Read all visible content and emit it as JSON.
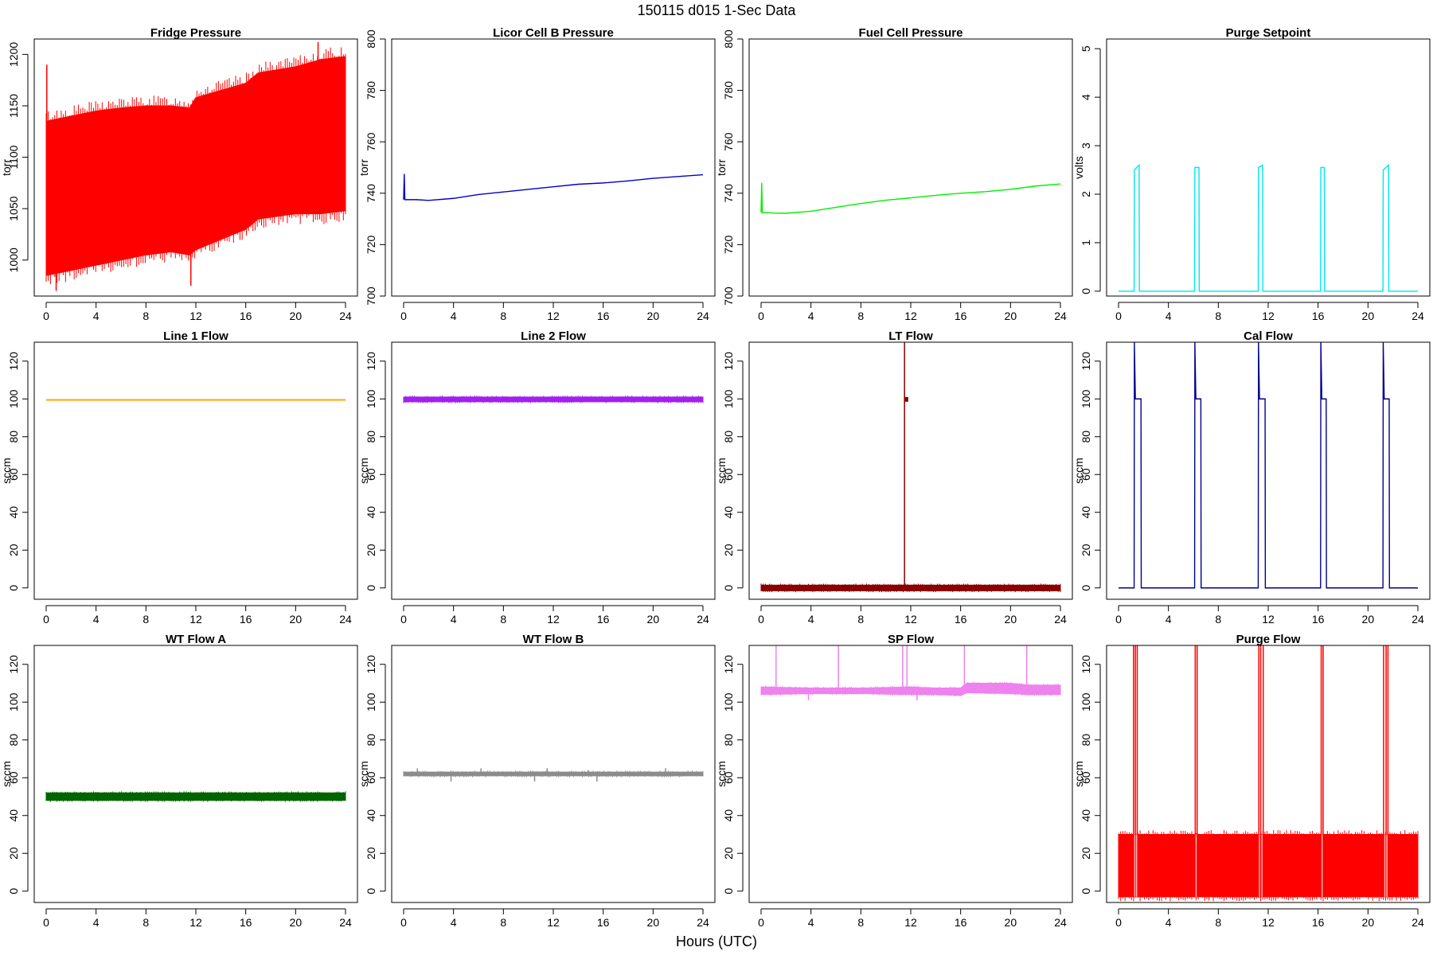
{
  "page": {
    "title": "150115    d015    1-Sec Data",
    "xlabel": "Hours (UTC)"
  },
  "chart_data": [
    {
      "type": "line",
      "title": "Fridge Pressure",
      "ylabel": "torr",
      "color": "#ff0000",
      "xlim": [
        0,
        24
      ],
      "ylim": [
        965,
        1215
      ],
      "xticks": [
        0,
        4,
        8,
        12,
        16,
        20,
        24
      ],
      "yticks": [
        1000,
        1050,
        1100,
        1150,
        1200
      ],
      "style": "band",
      "band": {
        "x": [
          0,
          2,
          4,
          6,
          8,
          10,
          11.5,
          12,
          14,
          16,
          17,
          20,
          22,
          24
        ],
        "low": [
          985,
          990,
          995,
          1000,
          1005,
          1008,
          1005,
          1010,
          1020,
          1030,
          1040,
          1045,
          1045,
          1048
        ],
        "high": [
          1135,
          1140,
          1145,
          1148,
          1150,
          1150,
          1148,
          1158,
          1165,
          1172,
          1182,
          1188,
          1195,
          1198
        ]
      },
      "spikes": [
        {
          "x": 0.05,
          "y": 1190
        },
        {
          "x": 0.8,
          "y": 970
        },
        {
          "x": 11.6,
          "y": 975
        },
        {
          "x": 21.8,
          "y": 1212
        }
      ]
    },
    {
      "type": "line",
      "title": "Licor Cell B Pressure",
      "ylabel": "torr",
      "color": "#0000cd",
      "xlim": [
        0,
        24
      ],
      "ylim": [
        700,
        800
      ],
      "xticks": [
        0,
        4,
        8,
        12,
        16,
        20,
        24
      ],
      "yticks": [
        700,
        720,
        740,
        760,
        780,
        800
      ],
      "style": "line",
      "x": [
        0,
        0.05,
        0.1,
        1,
        2,
        4,
        6,
        8,
        10,
        12,
        14,
        16,
        18,
        20,
        22,
        24
      ],
      "y": [
        737.5,
        747.5,
        737.5,
        737.5,
        737.2,
        738,
        739.5,
        740.5,
        741.5,
        742.5,
        743.5,
        744,
        744.8,
        745.8,
        746.5,
        747.2
      ]
    },
    {
      "type": "line",
      "title": "Fuel Cell Pressure",
      "ylabel": "torr",
      "color": "#00ee00",
      "xlim": [
        0,
        24
      ],
      "ylim": [
        700,
        800
      ],
      "xticks": [
        0,
        4,
        8,
        12,
        16,
        20,
        24
      ],
      "yticks": [
        700,
        720,
        740,
        760,
        780,
        800
      ],
      "style": "line",
      "x": [
        0,
        0.05,
        0.1,
        1,
        2,
        4,
        6,
        8,
        10,
        12,
        14,
        16,
        18,
        20,
        22,
        24
      ],
      "y": [
        732.5,
        744,
        732.5,
        732.3,
        732.2,
        733,
        734.5,
        736,
        737.3,
        738.2,
        739.2,
        740,
        740.6,
        741.5,
        742.8,
        743.6
      ]
    },
    {
      "type": "line",
      "title": "Purge Setpoint",
      "ylabel": "volts",
      "color": "#00e5ee",
      "xlim": [
        0,
        24
      ],
      "ylim": [
        -0.1,
        5.2
      ],
      "xticks": [
        0,
        4,
        8,
        12,
        16,
        20,
        24
      ],
      "yticks": [
        0,
        1,
        2,
        3,
        4,
        5
      ],
      "style": "line",
      "x": [
        0,
        1.25,
        1.27,
        1.65,
        1.67,
        6.1,
        6.12,
        6.45,
        6.47,
        11.2,
        11.22,
        11.55,
        11.57,
        16.2,
        16.22,
        16.5,
        16.52,
        21.2,
        21.22,
        21.65,
        21.67,
        24
      ],
      "y": [
        0,
        0,
        2.5,
        2.6,
        0,
        0,
        2.55,
        2.55,
        0,
        0,
        2.55,
        2.6,
        0,
        0,
        2.55,
        2.55,
        0,
        0,
        2.5,
        2.6,
        0,
        0
      ]
    },
    {
      "type": "line",
      "title": "Line 1 Flow",
      "ylabel": "sccm",
      "color": "#ffa500",
      "xlim": [
        0,
        24
      ],
      "ylim": [
        -6,
        130
      ],
      "xticks": [
        0,
        4,
        8,
        12,
        16,
        20,
        24
      ],
      "yticks": [
        0,
        20,
        40,
        60,
        80,
        100,
        120
      ],
      "style": "line",
      "x": [
        0,
        24
      ],
      "y": [
        99.5,
        99.5
      ]
    },
    {
      "type": "line",
      "title": "Line 2 Flow",
      "ylabel": "sccm",
      "color": "#a020f0",
      "xlim": [
        0,
        24
      ],
      "ylim": [
        -6,
        130
      ],
      "xticks": [
        0,
        4,
        8,
        12,
        16,
        20,
        24
      ],
      "yticks": [
        0,
        20,
        40,
        60,
        80,
        100,
        120
      ],
      "style": "band",
      "band": {
        "x": [
          0,
          24
        ],
        "low": [
          98.5,
          98.5
        ],
        "high": [
          101,
          101
        ]
      },
      "spikes": []
    },
    {
      "type": "line",
      "title": "LT Flow",
      "ylabel": "sccm",
      "color": "#8b0000",
      "xlim": [
        0,
        24
      ],
      "ylim": [
        -6,
        130
      ],
      "xticks": [
        0,
        4,
        8,
        12,
        16,
        20,
        24
      ],
      "yticks": [
        0,
        20,
        40,
        60,
        80,
        100,
        120
      ],
      "style": "band",
      "band": {
        "x": [
          0,
          24
        ],
        "low": [
          -1.5,
          -1.5
        ],
        "high": [
          1.5,
          1.5
        ]
      },
      "spikes": [
        {
          "x": 11.5,
          "y": 130
        }
      ],
      "blocks": [
        {
          "x0": 11.5,
          "x1": 11.8,
          "y0": 98.5,
          "y1": 101
        }
      ]
    },
    {
      "type": "line",
      "title": "Cal Flow",
      "ylabel": "sccm",
      "color": "#00008b",
      "xlim": [
        0,
        24
      ],
      "ylim": [
        -6,
        130
      ],
      "xticks": [
        0,
        4,
        8,
        12,
        16,
        20,
        24
      ],
      "yticks": [
        0,
        20,
        40,
        60,
        80,
        100,
        120
      ],
      "style": "line",
      "x": [
        0,
        1.25,
        1.27,
        1.35,
        1.8,
        1.82,
        6.1,
        6.12,
        6.2,
        6.6,
        6.62,
        11.2,
        11.22,
        11.3,
        11.75,
        11.77,
        16.2,
        16.22,
        16.3,
        16.65,
        16.67,
        21.2,
        21.22,
        21.3,
        21.7,
        21.72,
        24
      ],
      "y": [
        0,
        0,
        130,
        100,
        100,
        0,
        0,
        130,
        100,
        100,
        0,
        0,
        130,
        100,
        100,
        0,
        0,
        130,
        100,
        100,
        0,
        0,
        130,
        100,
        100,
        0,
        0
      ]
    },
    {
      "type": "line",
      "title": "WT Flow A",
      "ylabel": "sccm",
      "color": "#006400",
      "xlim": [
        0,
        24
      ],
      "ylim": [
        -6,
        130
      ],
      "xticks": [
        0,
        4,
        8,
        12,
        16,
        20,
        24
      ],
      "yticks": [
        0,
        20,
        40,
        60,
        80,
        100,
        120
      ],
      "style": "band",
      "band": {
        "x": [
          0,
          24
        ],
        "low": [
          48,
          48
        ],
        "high": [
          52,
          52
        ]
      },
      "spikes": []
    },
    {
      "type": "line",
      "title": "WT Flow B",
      "ylabel": "sccm",
      "color": "#8c8c8c",
      "xlim": [
        0,
        24
      ],
      "ylim": [
        -6,
        130
      ],
      "xticks": [
        0,
        4,
        8,
        12,
        16,
        20,
        24
      ],
      "yticks": [
        0,
        20,
        40,
        60,
        80,
        100,
        120
      ],
      "style": "band",
      "band": {
        "x": [
          0,
          24
        ],
        "low": [
          61,
          61
        ],
        "high": [
          63,
          63
        ]
      },
      "spikes": [
        {
          "x": 1.1,
          "y": 65
        },
        {
          "x": 3.8,
          "y": 58
        },
        {
          "x": 6.2,
          "y": 65
        },
        {
          "x": 10.5,
          "y": 58
        },
        {
          "x": 11.5,
          "y": 65
        },
        {
          "x": 14.8,
          "y": 64
        },
        {
          "x": 15.5,
          "y": 58
        },
        {
          "x": 21,
          "y": 65
        }
      ]
    },
    {
      "type": "line",
      "title": "SP Flow",
      "ylabel": "sccm",
      "color": "#ee82ee",
      "xlim": [
        0,
        24
      ],
      "ylim": [
        -6,
        130
      ],
      "xticks": [
        0,
        4,
        8,
        12,
        16,
        20,
        24
      ],
      "yticks": [
        0,
        20,
        40,
        60,
        80,
        100,
        120
      ],
      "style": "band",
      "band": {
        "x": [
          0,
          4,
          8,
          12,
          14,
          16,
          16.5,
          20,
          21.5,
          24
        ],
        "low": [
          104,
          104.5,
          104.5,
          104,
          104,
          103.5,
          105,
          104.5,
          104,
          104
        ],
        "high": [
          108,
          107.5,
          107.5,
          108,
          107.5,
          107.5,
          110,
          110,
          109,
          109
        ]
      },
      "spikes": [
        {
          "x": 1.2,
          "y": 130
        },
        {
          "x": 6.2,
          "y": 130
        },
        {
          "x": 11.35,
          "y": 130
        },
        {
          "x": 11.7,
          "y": 130
        },
        {
          "x": 16.3,
          "y": 130
        },
        {
          "x": 21.3,
          "y": 130
        },
        {
          "x": 3.8,
          "y": 101
        },
        {
          "x": 12.5,
          "y": 101
        }
      ]
    },
    {
      "type": "line",
      "title": "Purge Flow",
      "ylabel": "sccm",
      "color": "#ff0000",
      "xlim": [
        0,
        24
      ],
      "ylim": [
        -6,
        130
      ],
      "xticks": [
        0,
        4,
        8,
        12,
        16,
        20,
        24
      ],
      "yticks": [
        0,
        20,
        40,
        60,
        80,
        100,
        120
      ],
      "style": "band",
      "band": {
        "x": [
          0,
          24
        ],
        "low": [
          -3,
          -3
        ],
        "high": [
          30,
          30
        ]
      },
      "spikes": [
        {
          "x": 1.2,
          "y": 130
        },
        {
          "x": 1.35,
          "y": 130
        },
        {
          "x": 1.5,
          "y": 130
        },
        {
          "x": 6.15,
          "y": 130
        },
        {
          "x": 6.3,
          "y": 130
        },
        {
          "x": 11.25,
          "y": 130
        },
        {
          "x": 11.4,
          "y": 130
        },
        {
          "x": 11.6,
          "y": 130
        },
        {
          "x": 16.25,
          "y": 130
        },
        {
          "x": 16.4,
          "y": 130
        },
        {
          "x": 21.25,
          "y": 130
        },
        {
          "x": 21.45,
          "y": 130
        },
        {
          "x": 21.6,
          "y": 130
        }
      ],
      "gaps": [
        1.3,
        1.45,
        6.22,
        11.3,
        11.5,
        16.32,
        21.35,
        21.52
      ]
    }
  ]
}
